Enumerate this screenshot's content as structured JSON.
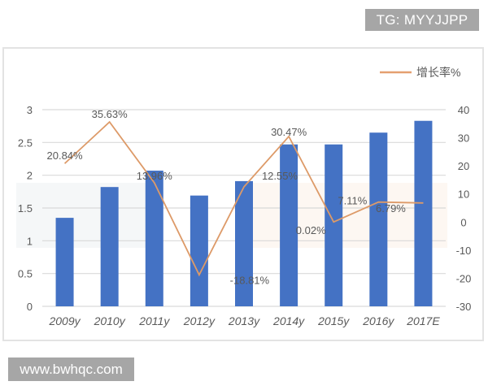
{
  "badges": {
    "top_right": "TG: MYYJJPP",
    "bottom_left": "www.bwhqc.com"
  },
  "legend": {
    "line_label": "增长率%",
    "line_color": "#e5a070"
  },
  "colors": {
    "bar": "#4472c4",
    "line": "#dd9a68",
    "grid": "#d9d9d9",
    "axis_text": "#595959"
  },
  "chart_data": {
    "type": "bar+line",
    "title": "",
    "categories": [
      "2009y",
      "2010y",
      "2011y",
      "2012y",
      "2013y",
      "2014y",
      "2015y",
      "2016y",
      "2017E"
    ],
    "series": [
      {
        "name": "",
        "type": "bar",
        "axis": "left",
        "values": [
          1.35,
          1.82,
          2.07,
          1.69,
          1.91,
          2.47,
          2.47,
          2.65,
          2.83
        ]
      },
      {
        "name": "增长率%",
        "type": "line",
        "axis": "right",
        "values": [
          20.84,
          35.63,
          13.96,
          -18.81,
          12.55,
          30.47,
          0.02,
          7.11,
          6.79
        ],
        "labels": [
          "20.84%",
          "35.63%",
          "13.96%",
          "-18.81%",
          "12.55%",
          "30.47%",
          "0.02%",
          "7.11%",
          "6.79%"
        ]
      }
    ],
    "y_left": {
      "min": 0,
      "max": 3,
      "ticks": [
        "0",
        "0.5",
        "1",
        "1.5",
        "2",
        "2.5",
        "3"
      ]
    },
    "y_right": {
      "min": -30,
      "max": 40,
      "ticks": [
        "-30",
        "-20",
        "-10",
        "0",
        "10",
        "20",
        "30",
        "40"
      ]
    },
    "xlabel": "",
    "ylabel": "",
    "grid": true,
    "legend_position": "top-right"
  }
}
